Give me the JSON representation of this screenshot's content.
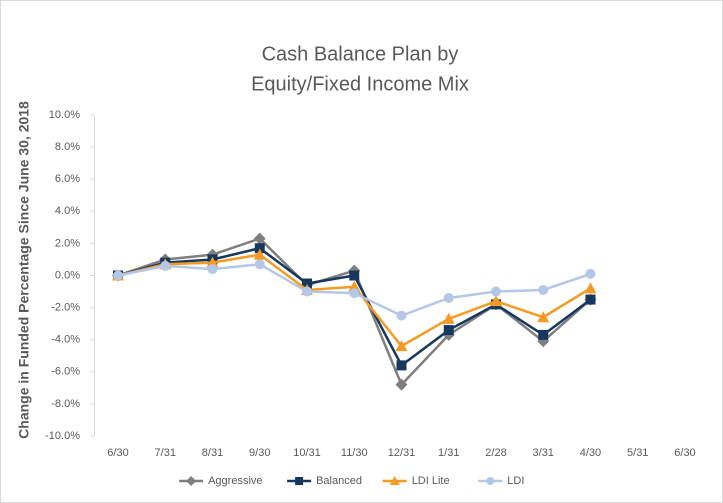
{
  "chart_data": {
    "type": "line",
    "title": [
      "Cash Balance Plan by",
      "Equity/Fixed Income Mix"
    ],
    "ylabel": "Change in Funded Percentage Since June 30, 2018",
    "categories": [
      "6/30",
      "7/31",
      "8/31",
      "9/30",
      "10/31",
      "11/30",
      "12/31",
      "1/31",
      "2/28",
      "3/31",
      "4/30",
      "5/31",
      "6/30"
    ],
    "series": [
      {
        "name": "Aggressive",
        "color": "#7f7f7f",
        "marker": "diamond",
        "values": [
          0.0,
          1.0,
          1.3,
          2.3,
          -0.6,
          0.3,
          -6.8,
          -3.7,
          -1.8,
          -4.1,
          -1.5,
          null,
          null
        ]
      },
      {
        "name": "Balanced",
        "color": "#17375e",
        "marker": "square",
        "values": [
          0.0,
          0.8,
          1.0,
          1.7,
          -0.5,
          0.0,
          -5.6,
          -3.4,
          -1.8,
          -3.7,
          -1.5,
          null,
          null
        ]
      },
      {
        "name": "LDI Lite",
        "color": "#f59a23",
        "marker": "triangle",
        "values": [
          0.0,
          0.7,
          0.8,
          1.3,
          -0.9,
          -0.7,
          -4.4,
          -2.7,
          -1.6,
          -2.6,
          -0.8,
          null,
          null
        ]
      },
      {
        "name": "LDI",
        "color": "#b4c7e7",
        "marker": "circle",
        "values": [
          0.0,
          0.6,
          0.4,
          0.7,
          -1.0,
          -1.1,
          -2.5,
          -1.4,
          -1.0,
          -0.9,
          0.1,
          null,
          null
        ]
      }
    ],
    "ylim": [
      -10,
      10
    ],
    "yticks": [
      {
        "value": -10,
        "label": "-10.0%"
      },
      {
        "value": -8,
        "label": "-8.0%"
      },
      {
        "value": -6,
        "label": "-6.0%"
      },
      {
        "value": -4,
        "label": "-4.0%"
      },
      {
        "value": -2,
        "label": "-2.0%"
      },
      {
        "value": 0,
        "label": "0.0%"
      },
      {
        "value": 2,
        "label": "2.0%"
      },
      {
        "value": 4,
        "label": "4.0%"
      },
      {
        "value": 6,
        "label": "6.0%"
      },
      {
        "value": 8,
        "label": "8.0%"
      },
      {
        "value": 10,
        "label": "10.0%"
      }
    ],
    "grid": false,
    "legend": "bottom"
  }
}
